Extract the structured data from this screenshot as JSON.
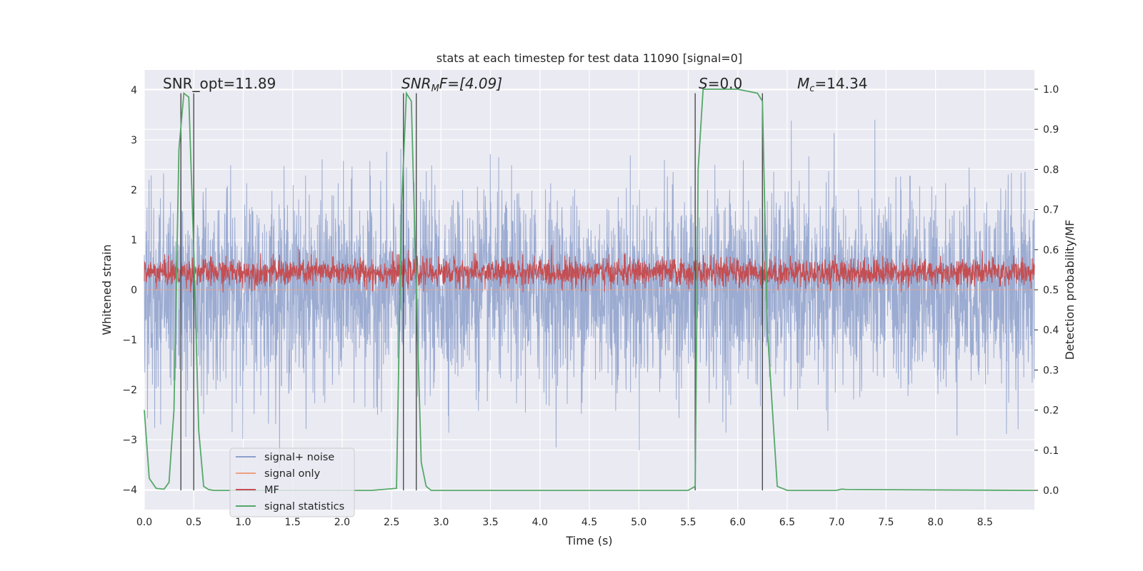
{
  "chart_data": {
    "type": "line",
    "title": "stats at each timestep for test data 11090 [signal=0]",
    "xlabel": "Time (s)",
    "ylabel_left": "Whitened strain",
    "ylabel_right": "Detection probability/MF",
    "xlim": [
      0.0,
      9.0
    ],
    "ylim_left": [
      -4.4,
      4.4
    ],
    "ylim_right": [
      -0.048,
      1.048
    ],
    "x_ticks": [
      "0.0",
      "0.5",
      "1.0",
      "1.5",
      "2.0",
      "2.5",
      "3.0",
      "3.5",
      "4.0",
      "4.5",
      "5.0",
      "5.5",
      "6.0",
      "6.5",
      "7.0",
      "7.5",
      "8.0",
      "8.5"
    ],
    "y_ticks_left": [
      "−4",
      "−3",
      "−2",
      "−1",
      "0",
      "1",
      "2",
      "3",
      "4"
    ],
    "y_ticks_right": [
      "0.0",
      "0.1",
      "0.2",
      "0.3",
      "0.4",
      "0.5",
      "0.6",
      "0.7",
      "0.8",
      "0.9",
      "1.0"
    ],
    "grid": true,
    "legend_position": "lower-left",
    "annotations": {
      "snr_opt": "SNR_opt=11.89",
      "snr_mf_label": "SNR",
      "snr_mf_sub": "M",
      "snr_mf_rest": "F=[4.09]",
      "s_label": "S",
      "s_rest": "=0.0",
      "mc_label": "M",
      "mc_sub": "c",
      "mc_rest": "=14.34"
    },
    "vertical_markers": [
      0.37,
      0.5,
      2.62,
      2.75,
      5.57,
      6.25
    ],
    "series": [
      {
        "name": "signal+ noise",
        "color": "#8da0cb",
        "axis": "left",
        "typical_range": [
          -1.6,
          1.6
        ],
        "extreme_range": [
          -4.0,
          3.6
        ]
      },
      {
        "name": "signal only",
        "color": "#f0a080",
        "axis": "left",
        "values": "flat at 0"
      },
      {
        "name": "MF",
        "color": "#c44e52",
        "axis": "left",
        "typical_range": [
          0.0,
          0.75
        ],
        "center": 0.35
      },
      {
        "name": "signal statistics",
        "color": "#55a868",
        "axis": "right",
        "x": [
          0.0,
          0.05,
          0.12,
          0.2,
          0.25,
          0.3,
          0.35,
          0.4,
          0.45,
          0.5,
          0.55,
          0.6,
          0.65,
          0.7,
          2.3,
          2.55,
          2.6,
          2.65,
          2.7,
          2.75,
          2.8,
          2.85,
          2.9,
          3.0,
          5.5,
          5.57,
          5.6,
          5.65,
          6.0,
          6.2,
          6.25,
          6.3,
          6.4,
          6.5,
          7.0,
          7.05,
          7.1,
          9.0
        ],
        "y": [
          0.2,
          0.03,
          0.005,
          0.003,
          0.02,
          0.2,
          0.85,
          0.99,
          0.98,
          0.6,
          0.15,
          0.01,
          0.002,
          0.0,
          0.0,
          0.005,
          0.7,
          0.99,
          0.97,
          0.5,
          0.07,
          0.01,
          0.0,
          0.0,
          0.0,
          0.01,
          0.8,
          1.0,
          1.0,
          0.99,
          0.97,
          0.4,
          0.01,
          0.0,
          0.0,
          0.003,
          0.002,
          0.0
        ]
      }
    ]
  }
}
